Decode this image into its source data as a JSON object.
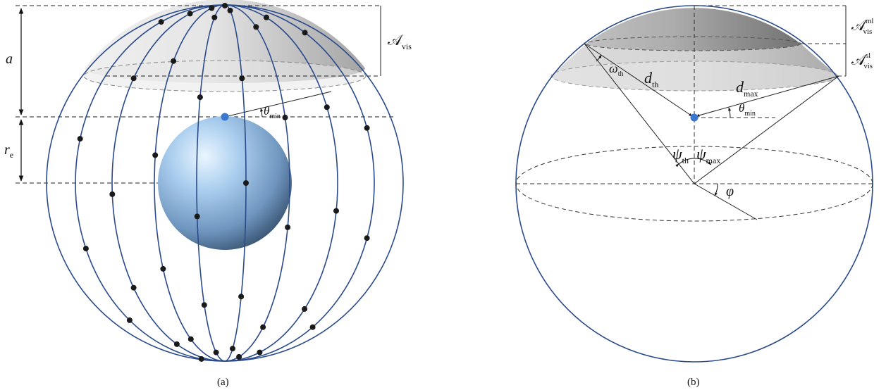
{
  "panel_a": {
    "caption": "(a)",
    "label_a": "a",
    "label_re_main": "r",
    "label_re_sub": "e",
    "label_A_main": "𝒜",
    "label_A_sub": "vis",
    "label_theta_main": "θ",
    "label_theta_sub": "min"
  },
  "panel_b": {
    "caption": "(b)",
    "A_ml_main": "𝒜",
    "A_ml_sup": "ml",
    "A_ml_sub": "vis",
    "A_sl_main": "𝒜",
    "A_sl_sup": "sl",
    "A_sl_sub": "vis",
    "omega_main": "ω",
    "omega_sub": "th",
    "dth_main": "d",
    "dth_sub": "th",
    "dmax_main": "d",
    "dmax_sub": "max",
    "theta_main": "θ",
    "theta_sub": "min",
    "psi_th_main": "ψ",
    "psi_th_sub": "th",
    "psi_max_main": "ψ",
    "psi_max_sub": "max",
    "phi": "φ"
  },
  "colors": {
    "sphere_outline": "#2a4a8c",
    "satellite_dot": "#1a1a1a",
    "observer_dot": "#3a78d0",
    "earth_light": "#cfe6fb",
    "earth_mid": "#8fb7dc",
    "earth_dark": "#3f5f7c",
    "cap_gray_light": "#f2f2f2",
    "cap_gray_dark": "#8f8f8f"
  }
}
